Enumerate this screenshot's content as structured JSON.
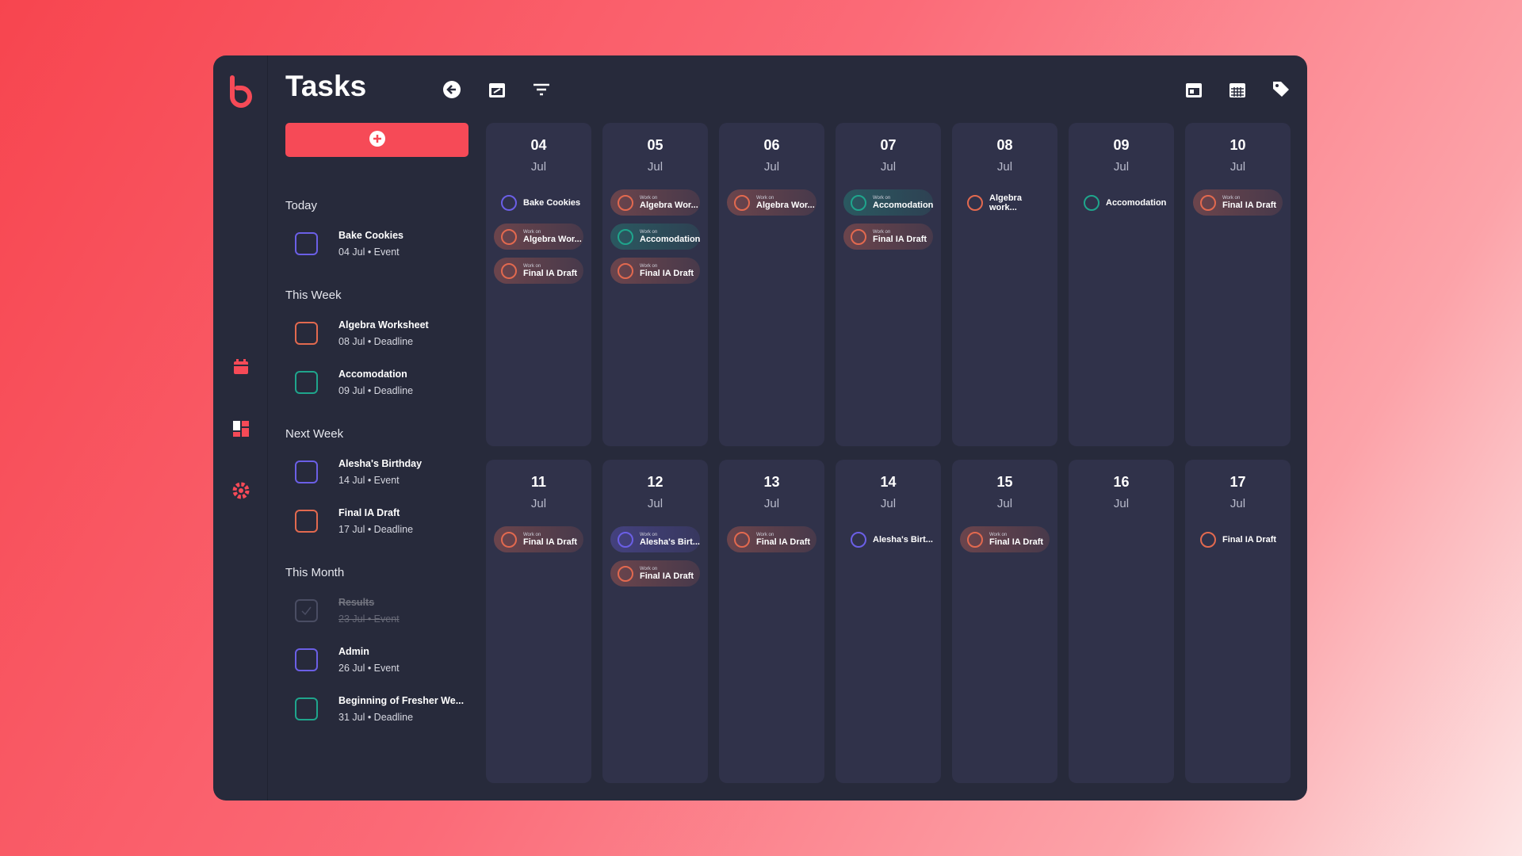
{
  "app": {
    "title": "Tasks"
  },
  "list": {
    "sections": [
      {
        "heading": "Today",
        "items": [
          {
            "title": "Bake Cookies",
            "meta": "04 Jul • Event",
            "color": "#6b5fe6",
            "done": false
          }
        ]
      },
      {
        "heading": "This Week",
        "items": [
          {
            "title": "Algebra Worksheet",
            "meta": "08 Jul • Deadline",
            "color": "#e2694f",
            "done": false
          },
          {
            "title": "Accomodation",
            "meta": "09 Jul • Deadline",
            "color": "#1fa58c",
            "done": false
          }
        ]
      },
      {
        "heading": "Next Week",
        "items": [
          {
            "title": "Alesha's Birthday",
            "meta": "14 Jul • Event",
            "color": "#6b5fe6",
            "done": false
          },
          {
            "title": "Final IA Draft",
            "meta": "17 Jul • Deadline",
            "color": "#e2694f",
            "done": false
          }
        ]
      },
      {
        "heading": "This Month",
        "items": [
          {
            "title": "Results",
            "meta": "23 Jul • Event",
            "color": "#4a4d63",
            "done": true
          },
          {
            "title": "Admin",
            "meta": "26 Jul • Event",
            "color": "#6b5fe6",
            "done": false
          },
          {
            "title": "Beginning of Fresher We...",
            "meta": "31 Jul • Deadline",
            "color": "#1fa58c",
            "done": false
          }
        ]
      }
    ]
  },
  "calendar": {
    "days": [
      {
        "day": "04",
        "month": "Jul",
        "tasks": [
          {
            "title": "Bake Cookies",
            "color": "#6b5fe6"
          },
          {
            "label": "Work on",
            "title": "Algebra Wor...",
            "color": "#e2694f"
          },
          {
            "label": "Work on",
            "title": "Final IA Draft",
            "color": "#e2694f"
          }
        ]
      },
      {
        "day": "05",
        "month": "Jul",
        "tasks": [
          {
            "label": "Work on",
            "title": "Algebra Wor...",
            "color": "#e2694f"
          },
          {
            "label": "Work on",
            "title": "Accomodation",
            "color": "#1fa58c"
          },
          {
            "label": "Work on",
            "title": "Final IA Draft",
            "color": "#e2694f"
          }
        ]
      },
      {
        "day": "06",
        "month": "Jul",
        "tasks": [
          {
            "label": "Work on",
            "title": "Algebra Wor...",
            "color": "#e2694f"
          }
        ]
      },
      {
        "day": "07",
        "month": "Jul",
        "tasks": [
          {
            "label": "Work on",
            "title": "Accomodation",
            "color": "#1fa58c"
          },
          {
            "label": "Work on",
            "title": "Final IA Draft",
            "color": "#e2694f"
          }
        ]
      },
      {
        "day": "08",
        "month": "Jul",
        "tasks": [
          {
            "title": "Algebra work...",
            "color": "#e2694f"
          }
        ]
      },
      {
        "day": "09",
        "month": "Jul",
        "tasks": [
          {
            "title": "Accomodation",
            "color": "#1fa58c"
          }
        ]
      },
      {
        "day": "10",
        "month": "Jul",
        "tasks": [
          {
            "label": "Work on",
            "title": "Final IA Draft",
            "color": "#e2694f"
          }
        ]
      },
      {
        "day": "11",
        "month": "Jul",
        "tasks": [
          {
            "label": "Work on",
            "title": "Final IA Draft",
            "color": "#e2694f"
          }
        ]
      },
      {
        "day": "12",
        "month": "Jul",
        "tasks": [
          {
            "label": "Work on",
            "title": "Alesha's Birt...",
            "color": "#6b5fe6"
          },
          {
            "label": "Work on",
            "title": "Final IA Draft",
            "color": "#e2694f"
          }
        ]
      },
      {
        "day": "13",
        "month": "Jul",
        "tasks": [
          {
            "label": "Work on",
            "title": "Final IA Draft",
            "color": "#e2694f"
          }
        ]
      },
      {
        "day": "14",
        "month": "Jul",
        "tasks": [
          {
            "title": "Alesha's Birt...",
            "color": "#6b5fe6"
          }
        ]
      },
      {
        "day": "15",
        "month": "Jul",
        "tasks": [
          {
            "label": "Work on",
            "title": "Final IA Draft",
            "color": "#e2694f"
          }
        ]
      },
      {
        "day": "16",
        "month": "Jul",
        "tasks": []
      },
      {
        "day": "17",
        "month": "Jul",
        "tasks": [
          {
            "title": "Final IA Draft",
            "color": "#e2694f"
          }
        ]
      }
    ]
  }
}
